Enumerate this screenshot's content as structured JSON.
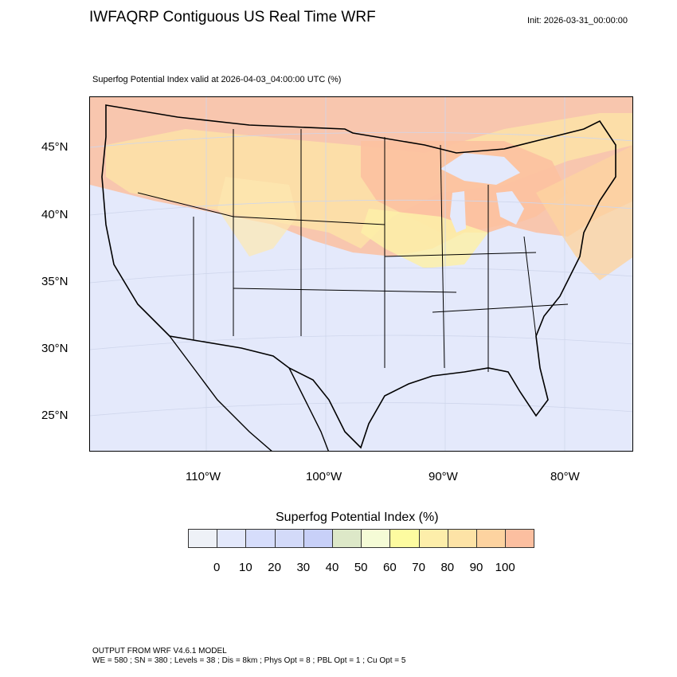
{
  "header": {
    "title": "IWFAQRP Contiguous US Real Time WRF",
    "init": "Init: 2026-03-31_00:00:00"
  },
  "plot": {
    "subtitle": "Superfog Potential Index valid at 2026-04-03_04:00:00 UTC   (%)"
  },
  "map": {
    "lat_labels": [
      "45°N",
      "40°N",
      "35°N",
      "30°N",
      "25°N"
    ],
    "lon_labels": [
      "110°W",
      "100°W",
      "90°W",
      "80°W"
    ],
    "colors": {
      "background": "#e4e9fb",
      "land_low": "#e6ebfb",
      "high_zone": "#fcbfa0",
      "mid_zone": "#fde3a6",
      "yellow_zone": "#fdf5a8",
      "boundary": "#000000"
    }
  },
  "legend": {
    "title": "Superfog Potential Index  (%)",
    "tick_labels": [
      "0",
      "10",
      "20",
      "30",
      "40",
      "50",
      "60",
      "70",
      "80",
      "90",
      "100"
    ],
    "colors": [
      "#eef1f7",
      "#e3e8fb",
      "#d6ddfb",
      "#d3daf9",
      "#c8d0f8",
      "#dde8c8",
      "#f5fbd6",
      "#fdfba0",
      "#fdeeaa",
      "#fde3a6",
      "#fdd3a0",
      "#fcbfa0"
    ]
  },
  "footer": {
    "line1": "OUTPUT FROM WRF V4.6.1 MODEL",
    "line2": "WE = 580 ; SN = 380 ; Levels = 38 ; Dis = 8km ; Phys Opt = 8 ; PBL Opt = 1 ; Cu Opt = 5"
  }
}
